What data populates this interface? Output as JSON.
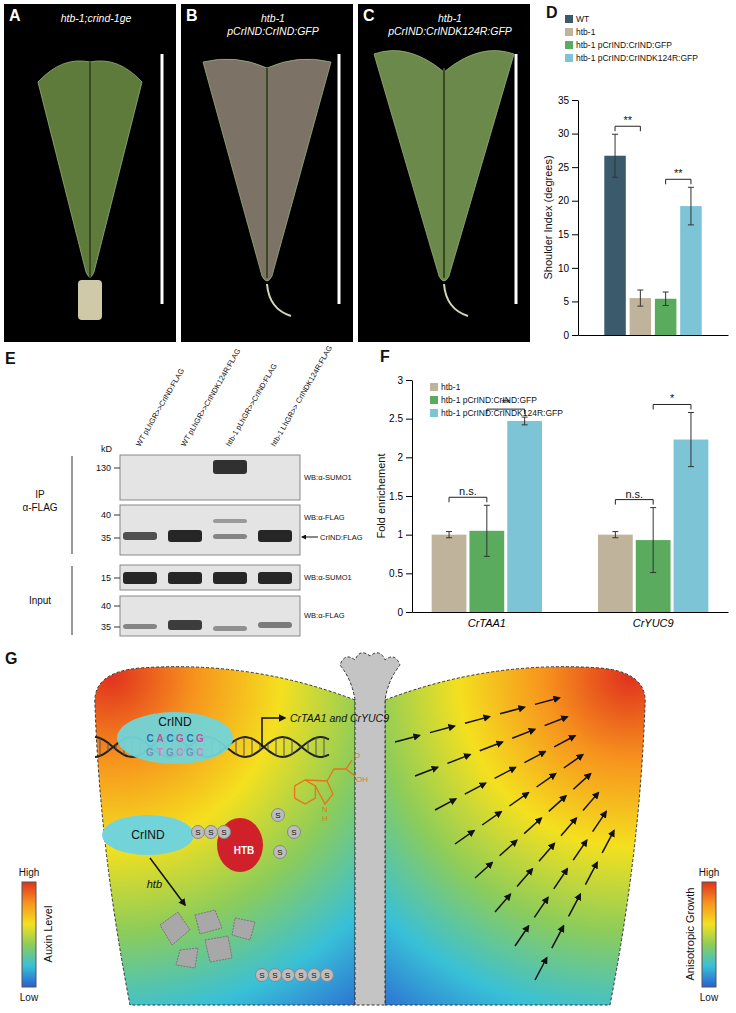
{
  "panel_labels": [
    "A",
    "B",
    "C",
    "D",
    "E",
    "F",
    "G"
  ],
  "photos": [
    {
      "caption": [
        "htb-1;crind-1ge"
      ]
    },
    {
      "caption": [
        "htb-1",
        "pCrIND:CrIND:GFP"
      ]
    },
    {
      "caption": [
        "htb-1",
        "pCrIND:CrINDK124R:GFP"
      ]
    }
  ],
  "chart_data": [
    {
      "type": "bar",
      "y_label": "Shoulder Index (degrees)",
      "categories": [
        null
      ],
      "ylim": [
        0,
        35
      ],
      "yticks": [
        0,
        5,
        10,
        15,
        20,
        25,
        30,
        35
      ],
      "legend": "top",
      "series": [
        {
          "name": "WT",
          "color": "#3b5a6b",
          "values": [
            26.7
          ],
          "errors": [
            3.2
          ]
        },
        {
          "name": "htb-1",
          "color": "#bfb49b",
          "values": [
            5.5
          ],
          "errors": [
            1.2
          ]
        },
        {
          "name": "htb-1 pCrIND:CrIND:GFP",
          "color": "#5aab5e",
          "values": [
            5.4
          ],
          "errors": [
            1.0
          ]
        },
        {
          "name": "htb-1 pCrIND:CrINDK124R:GFP",
          "color": "#7cc4d6",
          "values": [
            19.2
          ],
          "errors": [
            2.8
          ]
        }
      ],
      "annotations": [
        {
          "text": "**",
          "between": [
            "WT",
            "htb-1"
          ]
        },
        {
          "text": "**",
          "between": [
            "htb-1 pCrIND:CrIND:GFP",
            "htb-1 pCrIND:CrINDK124R:GFP"
          ]
        }
      ]
    },
    {
      "type": "bar",
      "y_label": "Fold enrichement",
      "categories": [
        "CrTAA1",
        "CrYUC9"
      ],
      "ylim": [
        0,
        3
      ],
      "yticks": [
        0,
        0.5,
        1,
        1.5,
        2,
        2.5,
        3
      ],
      "legend": "top-left",
      "series": [
        {
          "name": "htb-1",
          "color": "#bfb49b",
          "values": [
            1.0,
            1.0
          ],
          "errors": [
            0.04,
            0.04
          ]
        },
        {
          "name": "htb-1 pCrIND:CrIND:GFP",
          "color": "#5aab5e",
          "values": [
            1.05,
            0.93
          ],
          "errors": [
            0.33,
            0.42
          ]
        },
        {
          "name": "htb-1 pCrIND:CrINDK124R:GFP",
          "color": "#7cc4d6",
          "values": [
            2.47,
            2.23
          ],
          "errors": [
            0.05,
            0.35
          ]
        }
      ],
      "annotations": [
        {
          "text": "n.s.",
          "category": "CrTAA1",
          "between": [
            "htb-1",
            "htb-1 pCrIND:CrIND:GFP"
          ]
        },
        {
          "text": "**",
          "category": "CrTAA1",
          "between": [
            "htb-1 pCrIND:CrIND:GFP",
            "htb-1 pCrIND:CrINDK124R:GFP"
          ]
        },
        {
          "text": "n.s.",
          "category": "CrYUC9",
          "between": [
            "htb-1",
            "htb-1 pCrIND:CrIND:GFP"
          ]
        },
        {
          "text": "*",
          "category": "CrYUC9",
          "between": [
            "htb-1 pCrIND:CrIND:GFP",
            "htb-1 pCrIND:CrINDK124R:GFP"
          ]
        }
      ]
    }
  ],
  "blot": {
    "kd_label": "kD",
    "lanes": [
      "WT pLhGR>>CrIND:FLAG",
      "WT pLhGR>>CrINDK124R:FLAG",
      "htb-1 pLhGR>>CrIND:FLAG",
      "htb-1 LhGR>> CrINDK124R:FLAG"
    ],
    "ip_label": [
      "IP",
      "α-FLAG"
    ],
    "input_label": "Input",
    "blots": [
      {
        "markers": [
          130
        ],
        "wb": "WB:α-SUMO1"
      },
      {
        "markers": [
          40,
          35
        ],
        "wb": "WB:α-FLAG",
        "arrow": "CrIND:FLAG"
      },
      {
        "markers": [
          15
        ],
        "wb": "WB:α-SUMO1"
      },
      {
        "markers": [
          40,
          35
        ],
        "wb": "WB:α-FLAG"
      }
    ]
  },
  "model": {
    "tf": "CrIND",
    "motif_top": [
      "C",
      "A",
      "C",
      "G",
      "C",
      "G"
    ],
    "motif_bottom": [
      "G",
      "T",
      "G",
      "C",
      "G",
      "C"
    ],
    "genes": "CrTAA1 and CrYUC9",
    "iaa_atoms": [
      "N",
      "H",
      "O",
      "OH"
    ],
    "htb_protein": "HTB",
    "mutant": "htb",
    "sumo": "S",
    "left_bar": {
      "title": "Auxin Level",
      "high": "High",
      "low": "Low"
    },
    "right_bar": {
      "title": "Anisotropic Growth",
      "high": "High",
      "low": "Low"
    }
  }
}
